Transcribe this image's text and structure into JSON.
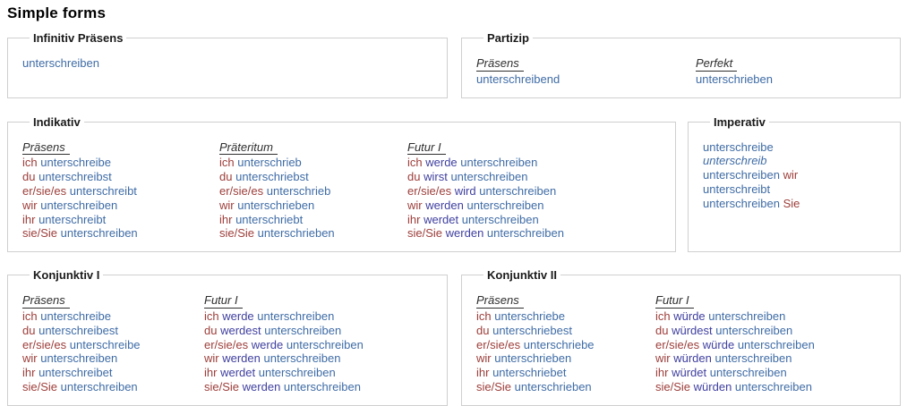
{
  "page_title": "Simple forms",
  "colors": {
    "pronoun": "#9c3e3a",
    "verb_form": "#3f6ca6",
    "auxiliary": "#3f3fa0",
    "column_header": "#2e2e2e",
    "legend_text": "#1a1a1a",
    "title_text": "#000000",
    "fieldset_border": "#cfcfcf",
    "background": "#ffffff"
  },
  "sections": {
    "infinitiv": {
      "legend": "Infinitiv Präsens",
      "columns": [
        {
          "header": null,
          "rows": [
            [
              [
                "unterschreiben",
                "v"
              ]
            ]
          ]
        }
      ]
    },
    "partizip": {
      "legend": "Partizip",
      "columns": [
        {
          "header": "Präsens",
          "rows": [
            [
              [
                "unterschreibend",
                "v"
              ]
            ]
          ]
        },
        {
          "header": "Perfekt",
          "rows": [
            [
              [
                "unterschrieben",
                "v"
              ]
            ]
          ]
        }
      ]
    },
    "indikativ": {
      "legend": "Indikativ",
      "columns": [
        {
          "header": "Präsens",
          "rows": [
            [
              [
                "ich",
                "p"
              ],
              [
                "unterschreibe",
                "v"
              ]
            ],
            [
              [
                "du",
                "p"
              ],
              [
                "unterschreibst",
                "v"
              ]
            ],
            [
              [
                "er/sie/es",
                "p"
              ],
              [
                "unterschreibt",
                "v"
              ]
            ],
            [
              [
                "wir",
                "p"
              ],
              [
                "unterschreiben",
                "v"
              ]
            ],
            [
              [
                "ihr",
                "p"
              ],
              [
                "unterschreibt",
                "v"
              ]
            ],
            [
              [
                "sie/Sie",
                "p"
              ],
              [
                "unterschreiben",
                "v"
              ]
            ]
          ]
        },
        {
          "header": "Präteritum",
          "rows": [
            [
              [
                "ich",
                "p"
              ],
              [
                "unterschrieb",
                "v"
              ]
            ],
            [
              [
                "du",
                "p"
              ],
              [
                "unterschriebst",
                "v"
              ]
            ],
            [
              [
                "er/sie/es",
                "p"
              ],
              [
                "unterschrieb",
                "v"
              ]
            ],
            [
              [
                "wir",
                "p"
              ],
              [
                "unterschrieben",
                "v"
              ]
            ],
            [
              [
                "ihr",
                "p"
              ],
              [
                "unterschriebt",
                "v"
              ]
            ],
            [
              [
                "sie/Sie",
                "p"
              ],
              [
                "unterschrieben",
                "v"
              ]
            ]
          ]
        },
        {
          "header": "Futur I",
          "rows": [
            [
              [
                "ich",
                "p"
              ],
              [
                "werde",
                "a"
              ],
              [
                "unterschreiben",
                "v"
              ]
            ],
            [
              [
                "du",
                "p"
              ],
              [
                "wirst",
                "a"
              ],
              [
                "unterschreiben",
                "v"
              ]
            ],
            [
              [
                "er/sie/es",
                "p"
              ],
              [
                "wird",
                "a"
              ],
              [
                "unterschreiben",
                "v"
              ]
            ],
            [
              [
                "wir",
                "p"
              ],
              [
                "werden",
                "a"
              ],
              [
                "unterschreiben",
                "v"
              ]
            ],
            [
              [
                "ihr",
                "p"
              ],
              [
                "werdet",
                "a"
              ],
              [
                "unterschreiben",
                "v"
              ]
            ],
            [
              [
                "sie/Sie",
                "p"
              ],
              [
                "werden",
                "a"
              ],
              [
                "unterschreiben",
                "v"
              ]
            ]
          ]
        }
      ]
    },
    "imperativ": {
      "legend": "Imperativ",
      "columns": [
        {
          "header": null,
          "rows": [
            [
              [
                "unterschreibe",
                "v"
              ]
            ],
            [
              [
                "unterschreib",
                "vi"
              ]
            ],
            [
              [
                "unterschreiben",
                "v"
              ],
              [
                "wir",
                "p"
              ]
            ],
            [
              [
                "unterschreibt",
                "v"
              ]
            ],
            [
              [
                "unterschreiben",
                "v"
              ],
              [
                "Sie",
                "p"
              ]
            ]
          ]
        }
      ]
    },
    "konjunktiv1": {
      "legend": "Konjunktiv I",
      "columns": [
        {
          "header": "Präsens",
          "rows": [
            [
              [
                "ich",
                "p"
              ],
              [
                "unterschreibe",
                "v"
              ]
            ],
            [
              [
                "du",
                "p"
              ],
              [
                "unterschreibest",
                "v"
              ]
            ],
            [
              [
                "er/sie/es",
                "p"
              ],
              [
                "unterschreibe",
                "v"
              ]
            ],
            [
              [
                "wir",
                "p"
              ],
              [
                "unterschreiben",
                "v"
              ]
            ],
            [
              [
                "ihr",
                "p"
              ],
              [
                "unterschreibet",
                "v"
              ]
            ],
            [
              [
                "sie/Sie",
                "p"
              ],
              [
                "unterschreiben",
                "v"
              ]
            ]
          ]
        },
        {
          "header": "Futur I",
          "rows": [
            [
              [
                "ich",
                "p"
              ],
              [
                "werde",
                "a"
              ],
              [
                "unterschreiben",
                "v"
              ]
            ],
            [
              [
                "du",
                "p"
              ],
              [
                "werdest",
                "a"
              ],
              [
                "unterschreiben",
                "v"
              ]
            ],
            [
              [
                "er/sie/es",
                "p"
              ],
              [
                "werde",
                "a"
              ],
              [
                "unterschreiben",
                "v"
              ]
            ],
            [
              [
                "wir",
                "p"
              ],
              [
                "werden",
                "a"
              ],
              [
                "unterschreiben",
                "v"
              ]
            ],
            [
              [
                "ihr",
                "p"
              ],
              [
                "werdet",
                "a"
              ],
              [
                "unterschreiben",
                "v"
              ]
            ],
            [
              [
                "sie/Sie",
                "p"
              ],
              [
                "werden",
                "a"
              ],
              [
                "unterschreiben",
                "v"
              ]
            ]
          ]
        }
      ]
    },
    "konjunktiv2": {
      "legend": "Konjunktiv II",
      "columns": [
        {
          "header": "Präsens",
          "rows": [
            [
              [
                "ich",
                "p"
              ],
              [
                "unterschriebe",
                "v"
              ]
            ],
            [
              [
                "du",
                "p"
              ],
              [
                "unterschriebest",
                "v"
              ]
            ],
            [
              [
                "er/sie/es",
                "p"
              ],
              [
                "unterschriebe",
                "v"
              ]
            ],
            [
              [
                "wir",
                "p"
              ],
              [
                "unterschrieben",
                "v"
              ]
            ],
            [
              [
                "ihr",
                "p"
              ],
              [
                "unterschriebet",
                "v"
              ]
            ],
            [
              [
                "sie/Sie",
                "p"
              ],
              [
                "unterschrieben",
                "v"
              ]
            ]
          ]
        },
        {
          "header": "Futur I",
          "rows": [
            [
              [
                "ich",
                "p"
              ],
              [
                "würde",
                "a"
              ],
              [
                "unterschreiben",
                "v"
              ]
            ],
            [
              [
                "du",
                "p"
              ],
              [
                "würdest",
                "a"
              ],
              [
                "unterschreiben",
                "v"
              ]
            ],
            [
              [
                "er/sie/es",
                "p"
              ],
              [
                "würde",
                "a"
              ],
              [
                "unterschreiben",
                "v"
              ]
            ],
            [
              [
                "wir",
                "p"
              ],
              [
                "würden",
                "a"
              ],
              [
                "unterschreiben",
                "v"
              ]
            ],
            [
              [
                "ihr",
                "p"
              ],
              [
                "würdet",
                "a"
              ],
              [
                "unterschreiben",
                "v"
              ]
            ],
            [
              [
                "sie/Sie",
                "p"
              ],
              [
                "würden",
                "a"
              ],
              [
                "unterschreiben",
                "v"
              ]
            ]
          ]
        }
      ]
    }
  }
}
